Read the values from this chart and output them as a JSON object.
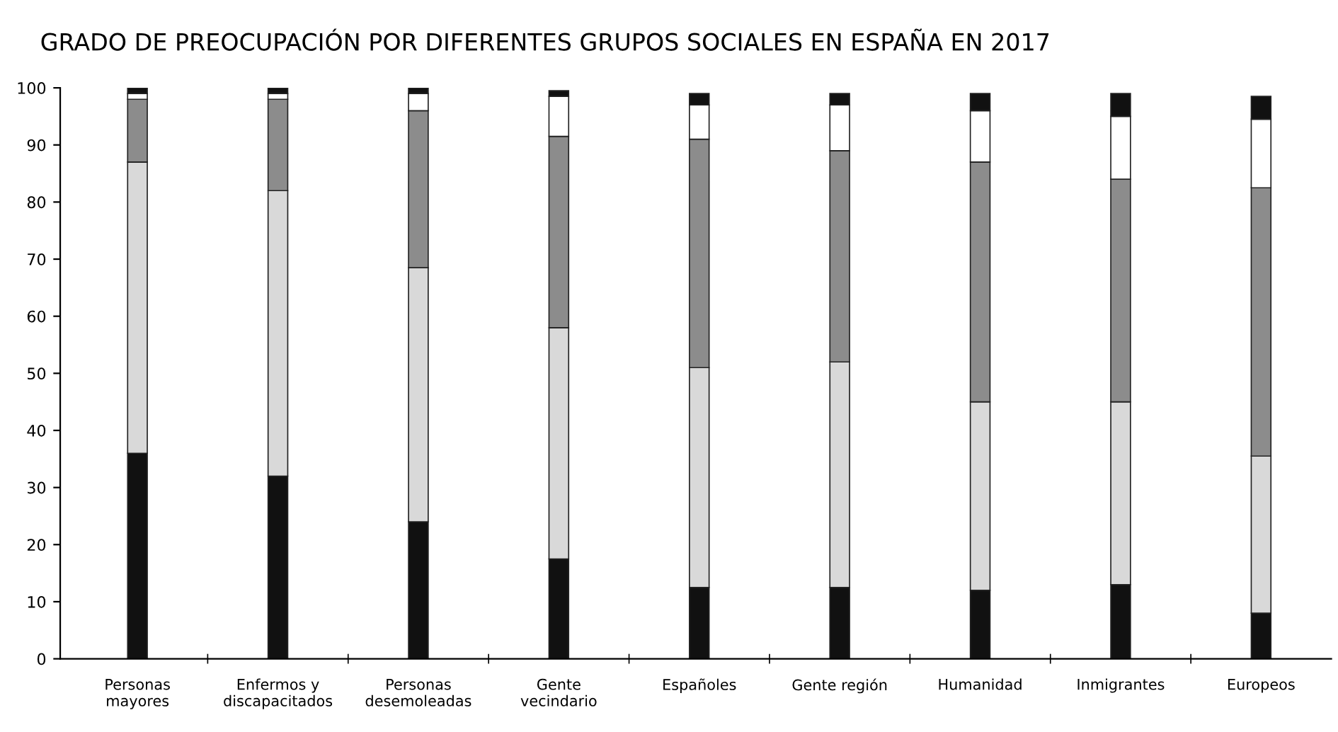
{
  "chart_data": {
    "type": "bar",
    "stacked": true,
    "title": "GRADO DE PREOCUPACIÓN POR DIFERENTES GRUPOS SOCIALES EN ESPAÑA EN 2017",
    "categories": [
      "Personas\nmayores",
      "Enfermos y\ndiscapacitados",
      "Personas\ndesemoleadas",
      "Gente\nvecindario",
      "Españoles",
      "Gente región",
      "Humanidad",
      "Inmigrantes",
      "Europeos"
    ],
    "series": [
      {
        "color": "#111111",
        "values": [
          36,
          32,
          24,
          17.5,
          12.5,
          12.5,
          12,
          13,
          8
        ]
      },
      {
        "color": "#d9d9d9",
        "values": [
          51,
          50,
          44.5,
          40.5,
          38.5,
          39.5,
          33,
          32,
          27.5
        ]
      },
      {
        "color": "#8c8c8c",
        "values": [
          11,
          16,
          27.5,
          33.5,
          40,
          37,
          42,
          39,
          47
        ]
      },
      {
        "color": "#ffffff",
        "values": [
          1,
          1,
          3,
          7,
          6,
          8,
          9,
          11,
          12
        ]
      },
      {
        "color": "#111111",
        "values": [
          1,
          1,
          1,
          1,
          2,
          2,
          3,
          4,
          4
        ]
      }
    ],
    "ylim": [
      0,
      100
    ],
    "yticks": [
      0,
      10,
      20,
      30,
      40,
      50,
      60,
      70,
      80,
      90,
      100
    ],
    "grid": false,
    "legend": false
  }
}
